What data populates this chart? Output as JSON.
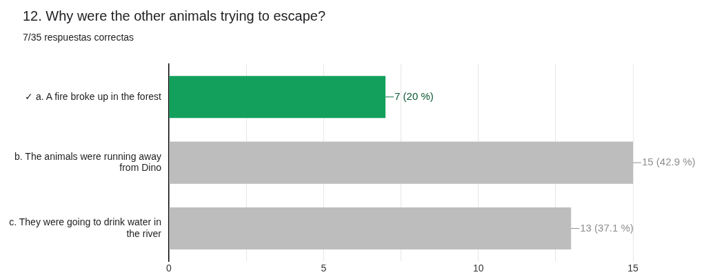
{
  "chart_data": {
    "type": "bar",
    "orientation": "horizontal",
    "title": "12. Why were the other animals trying to escape?",
    "subtitle": "7/35 respuestas correctas",
    "categories": [
      "✓ a. A fire broke up in the forest",
      "b. The animals were running away from Dino",
      "c. They were going to drink water in the river"
    ],
    "values": [
      7,
      15,
      13
    ],
    "colors": [
      "#12a05c",
      "#bdbdbd",
      "#bdbdbd"
    ],
    "value_labels": [
      "7 (20 %)",
      "15 (42.9 %)",
      "13 (37.1 %)"
    ],
    "xlim": [
      0,
      15
    ],
    "xticks": [
      0,
      {
        "value": 2.5,
        "label": null
      },
      5,
      {
        "value": 7.5,
        "label": null
      },
      10,
      {
        "value": 12.5,
        "label": null
      },
      15
    ],
    "grid": "x",
    "legend": false
  }
}
